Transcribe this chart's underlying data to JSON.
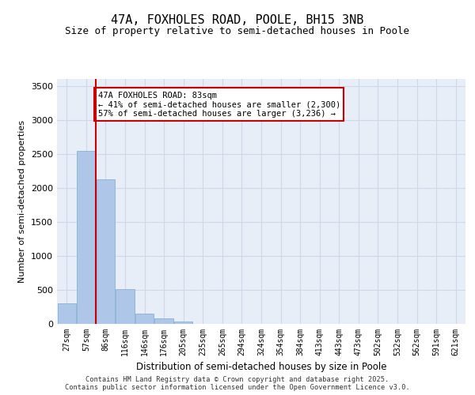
{
  "title_line1": "47A, FOXHOLES ROAD, POOLE, BH15 3NB",
  "title_line2": "Size of property relative to semi-detached houses in Poole",
  "xlabel": "Distribution of semi-detached houses by size in Poole",
  "ylabel": "Number of semi-detached properties",
  "categories": [
    "27sqm",
    "57sqm",
    "86sqm",
    "116sqm",
    "146sqm",
    "176sqm",
    "205sqm",
    "235sqm",
    "265sqm",
    "294sqm",
    "324sqm",
    "354sqm",
    "384sqm",
    "413sqm",
    "443sqm",
    "473sqm",
    "502sqm",
    "532sqm",
    "562sqm",
    "591sqm",
    "621sqm"
  ],
  "values": [
    305,
    2540,
    2120,
    510,
    155,
    80,
    30,
    5,
    0,
    0,
    0,
    0,
    0,
    0,
    0,
    0,
    0,
    0,
    0,
    0,
    0
  ],
  "bar_color": "#aec6e8",
  "bar_edge_color": "#7aaad0",
  "grid_color": "#d0d8e8",
  "background_color": "#e8eef8",
  "vline_x_index": 1,
  "vline_color": "#cc0000",
  "annotation_text": "47A FOXHOLES ROAD: 83sqm\n← 41% of semi-detached houses are smaller (2,300)\n57% of semi-detached houses are larger (3,236) →",
  "annotation_box_color": "#ffffff",
  "annotation_box_edge": "#cc0000",
  "ylim": [
    0,
    3600
  ],
  "yticks": [
    0,
    500,
    1000,
    1500,
    2000,
    2500,
    3000,
    3500
  ],
  "footer_line1": "Contains HM Land Registry data © Crown copyright and database right 2025.",
  "footer_line2": "Contains public sector information licensed under the Open Government Licence v3.0."
}
